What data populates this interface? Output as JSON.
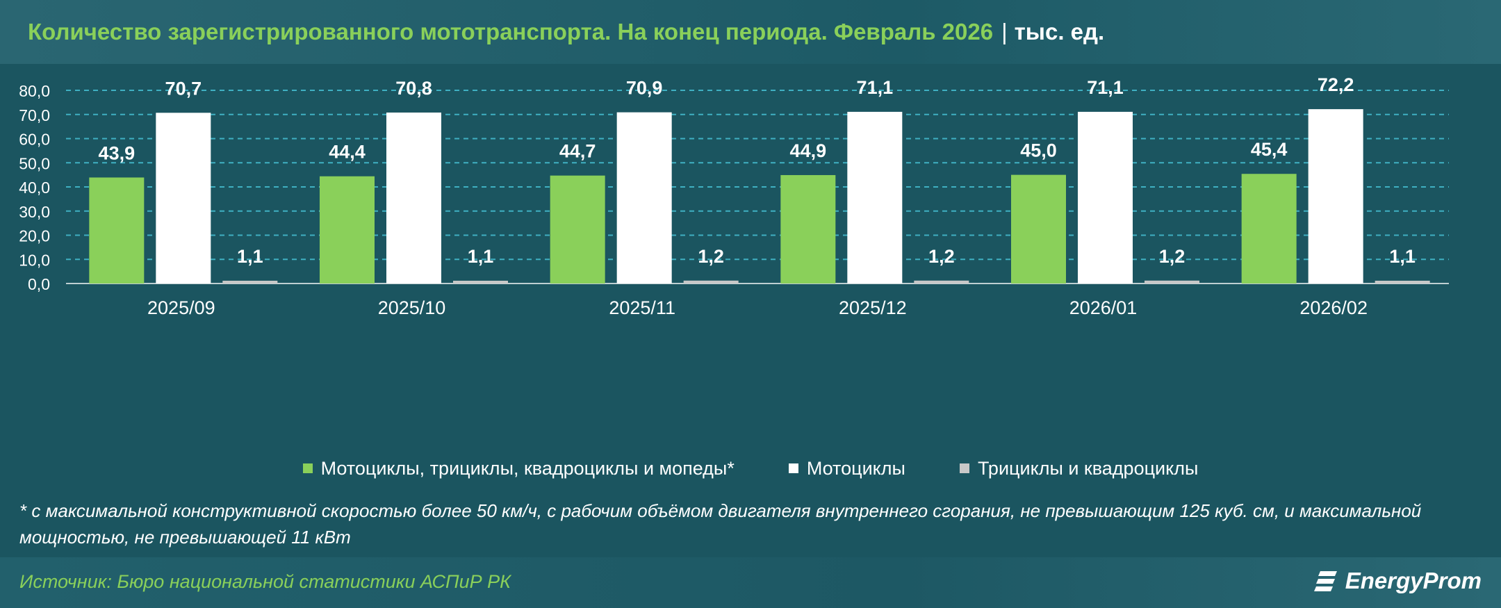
{
  "header": {
    "title": "Количество зарегистрированного мототранспорта. На конец периода. Февраль 2026",
    "separator": "|",
    "unit": "тыс. ед."
  },
  "colors": {
    "series1": "#8ad05a",
    "series2": "#ffffff",
    "series3": "#c8c8c8",
    "gridline": "#3fb0c2",
    "background": "#1b5560"
  },
  "chart_data": {
    "type": "bar",
    "categories": [
      "2025/09",
      "2025/10",
      "2025/11",
      "2025/12",
      "2026/01",
      "2026/02"
    ],
    "series": [
      {
        "name": "Мотоциклы, трициклы, квадроциклы и мопеды*",
        "values": [
          43.9,
          44.4,
          44.7,
          44.9,
          45.0,
          45.4
        ],
        "labels": [
          "43,9",
          "44,4",
          "44,7",
          "44,9",
          "45,0",
          "45,4"
        ]
      },
      {
        "name": "Мотоциклы",
        "values": [
          70.7,
          70.8,
          70.9,
          71.1,
          71.1,
          72.2
        ],
        "labels": [
          "70,7",
          "70,8",
          "70,9",
          "71,1",
          "71,1",
          "72,2"
        ]
      },
      {
        "name": "Трициклы и квадроциклы",
        "values": [
          1.1,
          1.1,
          1.2,
          1.2,
          1.2,
          1.1
        ],
        "labels": [
          "1,1",
          "1,1",
          "1,2",
          "1,2",
          "1,2",
          "1,1"
        ]
      }
    ],
    "yticks": [
      "0,0",
      "10,0",
      "20,0",
      "30,0",
      "40,0",
      "50,0",
      "60,0",
      "70,0",
      "80,0"
    ],
    "ylim": [
      0,
      80
    ],
    "grid": true,
    "legend_position": "bottom"
  },
  "legend": [
    {
      "label": "Мотоциклы, трициклы, квадроциклы и мопеды*",
      "color": "#8ad05a"
    },
    {
      "label": "Мотоциклы",
      "color": "#ffffff"
    },
    {
      "label": "Трициклы и квадроциклы",
      "color": "#c8c8c8"
    }
  ],
  "footnote": "* с максимальной конструктивной скоростью более 50 км/ч, с рабочим объёмом двигателя внутреннего сгорания, не превышающим 125 куб. см, и максимальной мощностью, не превышающей 11 кВт",
  "footer": {
    "source": "Источник: Бюро национальной статистики АСПиР РК",
    "logo_text": "EnergyProm",
    "logo_icon": "energyprom-logo-icon"
  }
}
